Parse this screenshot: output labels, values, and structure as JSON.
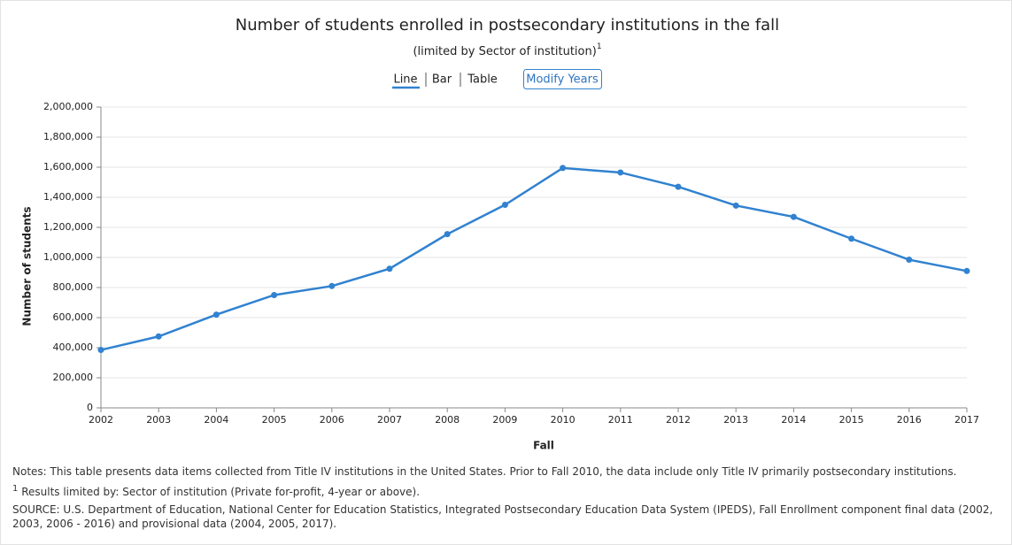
{
  "chart_data": {
    "type": "line",
    "title": "Number of students enrolled in postsecondary institutions in the fall",
    "subtitle": "(limited by Sector of institution)",
    "subtitle_footnote": "1",
    "views": [
      "Line",
      "Bar",
      "Table"
    ],
    "active_view": 0,
    "button": "Modify Years",
    "x_label": "Fall",
    "y_label": "Number of students",
    "categories": [
      "2002",
      "2003",
      "2004",
      "2005",
      "2006",
      "2007",
      "2008",
      "2009",
      "2010",
      "2011",
      "2012",
      "2013",
      "2014",
      "2015",
      "2016",
      "2017"
    ],
    "series": [
      {
        "name": "Number of students",
        "color": "#3182d0",
        "values": [
          385000,
          475000,
          620000,
          750000,
          810000,
          925000,
          1155000,
          1350000,
          1595000,
          1565000,
          1470000,
          1345000,
          1270000,
          1125000,
          985000,
          910000
        ]
      }
    ],
    "ylim": [
      0,
      2000000
    ],
    "yticks": [
      0,
      {
        "value": 200000,
        "label": "200,000"
      },
      {
        "value": 400000,
        "label": "400,000"
      },
      {
        "value": 600000,
        "label": "600,000"
      },
      {
        "value": 800000,
        "label": "800,000"
      },
      {
        "value": 1000000,
        "label": "1,000,000"
      },
      {
        "value": 1200000,
        "label": "1,200,000"
      },
      {
        "value": 1400000,
        "label": "1,400,000"
      },
      {
        "value": 1600000,
        "label": "1,600,000"
      },
      {
        "value": 1800000,
        "label": "1,800,000"
      },
      {
        "value": 2000000,
        "label": "2,000,000"
      }
    ],
    "grid": true,
    "notes": {
      "main": "Notes: This table presents data items collected from Title IV institutions in the United States. Prior to Fall 2010, the data include only Title IV primarily postsecondary institutions.",
      "footnote_marker": "1",
      "footnote": "Results limited by: Sector of institution (Private for-profit, 4-year or above).",
      "source": "SOURCE: U.S. Department of Education, National Center for Education Statistics, Integrated Postsecondary Education Data System (IPEDS), Fall Enrollment component final data (2002, 2003, 2006 - 2016) and provisional data (2004, 2005, 2017)."
    }
  }
}
